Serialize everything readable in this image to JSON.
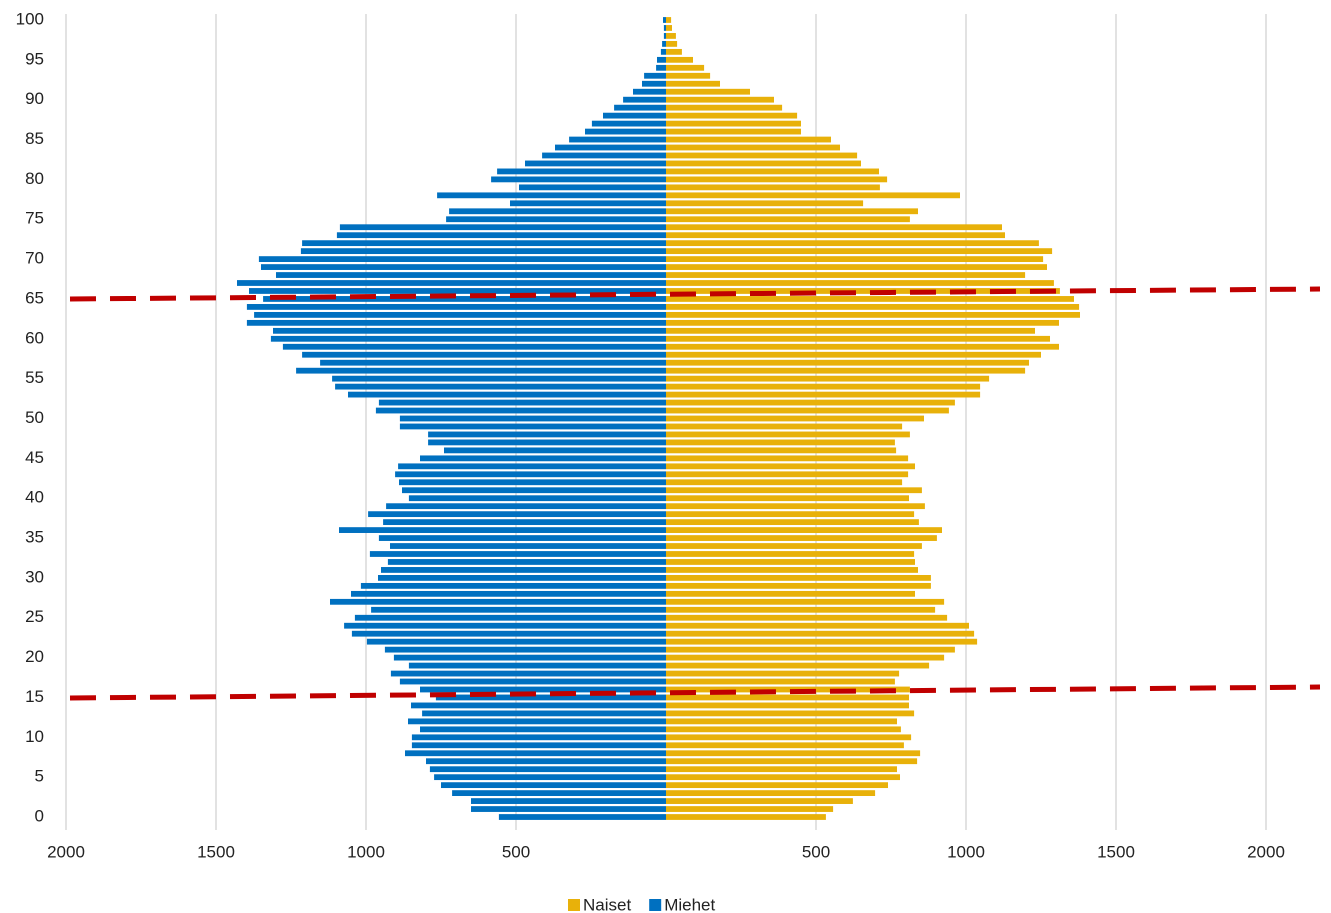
{
  "chart_data": {
    "type": "bar",
    "orientation": "horizontal",
    "categories": [
      0,
      null,
      null,
      null,
      null,
      5,
      null,
      null,
      null,
      null,
      10,
      null,
      null,
      null,
      null,
      15,
      null,
      null,
      null,
      null,
      20,
      null,
      null,
      null,
      null,
      25,
      null,
      null,
      null,
      null,
      30,
      null,
      null,
      null,
      null,
      35,
      null,
      null,
      null,
      null,
      40,
      null,
      null,
      null,
      null,
      45,
      null,
      null,
      null,
      null,
      50,
      null,
      null,
      null,
      null,
      55,
      null,
      null,
      null,
      null,
      60,
      null,
      null,
      null,
      null,
      65,
      null,
      null,
      null,
      null,
      70,
      null,
      null,
      null,
      null,
      75,
      null,
      null,
      null,
      null,
      80,
      null,
      null,
      null,
      null,
      85,
      null,
      null,
      null,
      null,
      90,
      null,
      null,
      null,
      null,
      95,
      null,
      null,
      null,
      null,
      100
    ],
    "series": [
      {
        "name": "Naiset",
        "color": "#e8b10a",
        "values": [
          533,
          557,
          623,
          697,
          740,
          780,
          770,
          837,
          847,
          793,
          817,
          783,
          770,
          827,
          810,
          810,
          813,
          763,
          777,
          877,
          927,
          963,
          1037,
          1027,
          1010,
          937,
          897,
          927,
          830,
          883,
          883,
          840,
          830,
          827,
          853,
          903,
          920,
          843,
          827,
          863,
          810,
          853,
          787,
          807,
          830,
          807,
          767,
          763,
          813,
          787,
          860,
          943,
          963,
          1047,
          1047,
          1077,
          1197,
          1210,
          1250,
          1310,
          1280,
          1230,
          1310,
          1380,
          1377,
          1360,
          1313,
          1293,
          1197,
          1270,
          1257,
          1287,
          1243,
          1130,
          1120,
          813,
          840,
          657,
          980,
          713,
          737,
          710,
          650,
          637,
          580,
          550,
          450,
          450,
          437,
          387,
          360,
          280,
          180,
          147,
          127,
          90,
          53,
          37,
          33,
          20,
          17
        ]
      },
      {
        "name": "Miehet",
        "color": "#0070c0",
        "values": [
          -557,
          -650,
          -650,
          -713,
          -750,
          -773,
          -787,
          -800,
          -870,
          -847,
          -847,
          -820,
          -860,
          -813,
          -850,
          -767,
          -820,
          -887,
          -917,
          -857,
          -907,
          -937,
          -997,
          -1047,
          -1073,
          -1037,
          -983,
          -1120,
          -1050,
          -1017,
          -960,
          -950,
          -927,
          -987,
          -920,
          -957,
          -1090,
          -943,
          -993,
          -933,
          -857,
          -880,
          -890,
          -903,
          -893,
          -820,
          -740,
          -793,
          -793,
          -887,
          -887,
          -967,
          -957,
          -1060,
          -1103,
          -1113,
          -1233,
          -1153,
          -1213,
          -1277,
          -1317,
          -1310,
          -1397,
          -1373,
          -1397,
          -1343,
          -1390,
          -1430,
          -1300,
          -1350,
          -1357,
          -1217,
          -1213,
          -1097,
          -1087,
          -733,
          -723,
          -520,
          -763,
          -490,
          -583,
          -563,
          -470,
          -413,
          -370,
          -323,
          -270,
          -247,
          -210,
          -173,
          -143,
          -110,
          -80,
          -73,
          -33,
          -30,
          -17,
          -13,
          -7,
          -7,
          -10
        ]
      }
    ],
    "xlim": [
      -2000,
      2000
    ],
    "xticks": [
      {
        "value": -2000,
        "label": "2000"
      },
      {
        "value": -1500,
        "label": "1500"
      },
      {
        "value": -1000,
        "label": "1000"
      },
      {
        "value": -500,
        "label": "500"
      },
      500,
      1000,
      1500,
      2000
    ],
    "grid": true,
    "legend": "bottom"
  }
}
